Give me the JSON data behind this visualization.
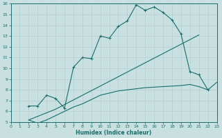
{
  "xlabel": "Humidex (Indice chaleur)",
  "xlim": [
    0,
    23
  ],
  "ylim": [
    5,
    16
  ],
  "xticks": [
    0,
    1,
    2,
    3,
    4,
    5,
    6,
    7,
    8,
    9,
    10,
    11,
    12,
    13,
    14,
    15,
    16,
    17,
    18,
    19,
    20,
    21,
    22,
    23
  ],
  "yticks": [
    5,
    6,
    7,
    8,
    9,
    10,
    11,
    12,
    13,
    14,
    15,
    16
  ],
  "bg_color": "#c8e0e0",
  "line_color": "#1a6b6b",
  "grid_color": "#b8d4d4",
  "line1_x": [
    2,
    3,
    4,
    5,
    6,
    7,
    8,
    9,
    10,
    11,
    12,
    13,
    14,
    15,
    16,
    17,
    18,
    19,
    20,
    21,
    22
  ],
  "line1_y": [
    6.5,
    6.5,
    7.5,
    7.2,
    6.3,
    10.1,
    11.0,
    10.9,
    13.0,
    12.8,
    13.9,
    14.4,
    15.9,
    15.4,
    15.7,
    15.2,
    14.5,
    13.2,
    9.7,
    9.4,
    8.0
  ],
  "line2_x": [
    2,
    5,
    21
  ],
  "line2_y": [
    5.2,
    6.2,
    13.1
  ],
  "line3_x": [
    2,
    3,
    4,
    5,
    6,
    7,
    8,
    9,
    10,
    11,
    12,
    13,
    14,
    15,
    16,
    17,
    18,
    19,
    20,
    21,
    22,
    23
  ],
  "line3_y": [
    5.2,
    4.9,
    5.2,
    5.6,
    6.0,
    6.4,
    6.7,
    7.1,
    7.5,
    7.7,
    7.9,
    8.0,
    8.1,
    8.2,
    8.25,
    8.3,
    8.35,
    8.4,
    8.5,
    8.3,
    8.0,
    8.7
  ]
}
